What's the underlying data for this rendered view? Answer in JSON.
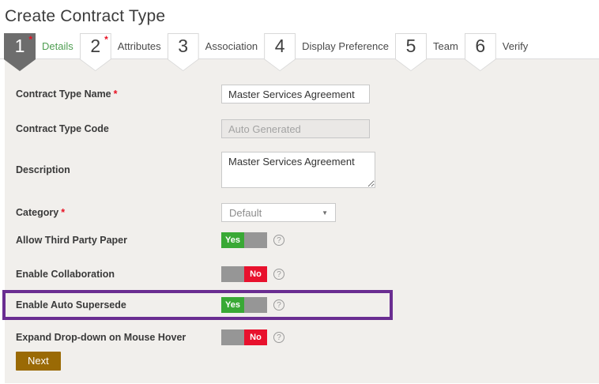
{
  "page": {
    "title": "Create Contract Type"
  },
  "wizard": {
    "required_marker": "*",
    "steps": [
      {
        "number": "1",
        "label": "Details",
        "active": true,
        "required": true
      },
      {
        "number": "2",
        "label": "Attributes",
        "active": false,
        "required": true
      },
      {
        "number": "3",
        "label": "Association",
        "active": false,
        "required": false
      },
      {
        "number": "4",
        "label": "Display Preference",
        "active": false,
        "required": false
      },
      {
        "number": "5",
        "label": "Team",
        "active": false,
        "required": false
      },
      {
        "number": "6",
        "label": "Verify",
        "active": false,
        "required": false
      }
    ]
  },
  "form": {
    "fields": [
      {
        "label": "Contract Type Name",
        "required": true,
        "type": "text",
        "value": "Master Services Agreement"
      },
      {
        "label": "Contract Type Code",
        "required": false,
        "type": "text",
        "placeholder": "Auto Generated",
        "disabled": true
      },
      {
        "label": "Description",
        "required": false,
        "type": "textarea",
        "value": "Master Services Agreement"
      },
      {
        "label": "Category",
        "required": true,
        "type": "select",
        "value": "Default"
      },
      {
        "label": "Allow Third Party Paper",
        "type": "toggle",
        "value": "Yes"
      },
      {
        "label": "Enable Collaboration",
        "type": "toggle",
        "value": "No"
      },
      {
        "label": "Enable Auto Supersede",
        "type": "toggle",
        "value": "Yes",
        "highlighted": true
      },
      {
        "label": "Expand Drop-down on Mouse Hover",
        "type": "toggle",
        "value": "No"
      }
    ],
    "next_button": "Next"
  },
  "icons": {
    "help": "?",
    "dropdown": "▼"
  },
  "colors": {
    "toggle_on_green": "#39a935",
    "toggle_off_red": "#e8112d",
    "toggle_knob_gray": "#969696",
    "active_step_gray": "#6d6d6d",
    "active_step_label_green": "#4f9e52",
    "required_red": "#e81123",
    "highlight_purple": "#6a2d91",
    "next_button_gold": "#9a6a05",
    "panel_gray": "#f1efec"
  }
}
